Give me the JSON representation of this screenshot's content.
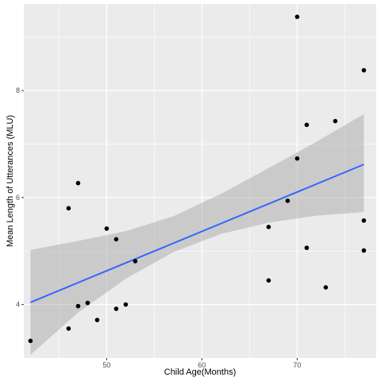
{
  "chart_data": {
    "type": "scatter",
    "xlabel": "Child Age(Months)",
    "ylabel": "Mean Length of Utterances (MLU)",
    "xlim": [
      41.3,
      78.3
    ],
    "ylim": [
      3.0,
      9.62
    ],
    "x_ticks": [
      50,
      60,
      70
    ],
    "y_ticks": [
      4,
      6,
      8
    ],
    "grid": true,
    "colors": {
      "panel": "#ebebeb",
      "grid_major": "#ffffff",
      "points": "#000000",
      "fit_line": "#3366ff",
      "confidence_band": "#999999"
    },
    "points": [
      {
        "x": 42,
        "y": 3.32
      },
      {
        "x": 46,
        "y": 3.55
      },
      {
        "x": 46,
        "y": 5.8
      },
      {
        "x": 47,
        "y": 3.97
      },
      {
        "x": 47,
        "y": 6.27
      },
      {
        "x": 48,
        "y": 4.03
      },
      {
        "x": 49,
        "y": 3.71
      },
      {
        "x": 50,
        "y": 5.42
      },
      {
        "x": 51,
        "y": 3.92
      },
      {
        "x": 51,
        "y": 5.22
      },
      {
        "x": 52,
        "y": 4.0
      },
      {
        "x": 53,
        "y": 4.81
      },
      {
        "x": 67,
        "y": 4.45
      },
      {
        "x": 67,
        "y": 5.45
      },
      {
        "x": 69,
        "y": 5.94
      },
      {
        "x": 70,
        "y": 6.73
      },
      {
        "x": 70,
        "y": 9.38
      },
      {
        "x": 71,
        "y": 5.06
      },
      {
        "x": 71,
        "y": 7.36
      },
      {
        "x": 73,
        "y": 4.32
      },
      {
        "x": 74,
        "y": 7.43
      },
      {
        "x": 77,
        "y": 5.01
      },
      {
        "x": 77,
        "y": 5.57
      },
      {
        "x": 77,
        "y": 8.38
      }
    ],
    "fit": {
      "method": "lm",
      "x": [
        42,
        77
      ],
      "y": [
        4.04,
        6.62
      ],
      "band_x": [
        42,
        47,
        52,
        57,
        62,
        67,
        72,
        77
      ],
      "band_lower": [
        3.06,
        3.85,
        4.48,
        4.98,
        5.32,
        5.53,
        5.66,
        5.73
      ],
      "band_upper": [
        5.02,
        5.19,
        5.37,
        5.65,
        6.07,
        6.55,
        7.04,
        7.56
      ]
    }
  }
}
